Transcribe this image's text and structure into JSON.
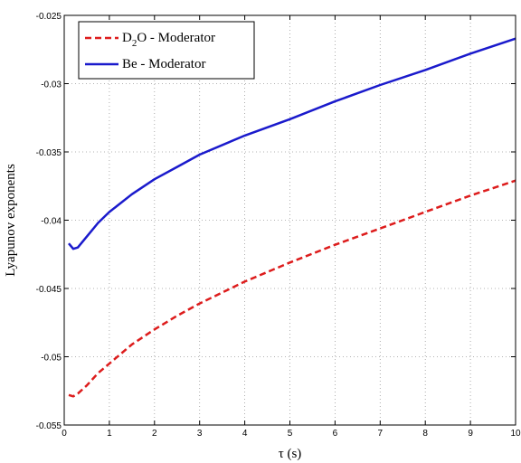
{
  "chart_data": {
    "type": "line",
    "title": "",
    "xlabel": "τ (s)",
    "ylabel": "Lyapunov exponents",
    "xlim": [
      0,
      10
    ],
    "ylim": [
      -0.055,
      -0.025
    ],
    "xticks": [
      "0",
      "1",
      "2",
      "3",
      "4",
      "5",
      "6",
      "7",
      "8",
      "9",
      "10"
    ],
    "yticks": [
      "-0.055",
      "-0.05",
      "-0.045",
      "-0.04",
      "-0.035",
      "-0.03",
      "-0.025"
    ],
    "grid": true,
    "legend_position": "top-left",
    "series": [
      {
        "name": "D2O - Moderator",
        "legend_main": "D",
        "legend_sub": "2",
        "legend_rest": "O - Moderator",
        "color": "#dd1c1c",
        "style": "dashed",
        "x": [
          0.1,
          0.2,
          0.3,
          0.5,
          0.75,
          1,
          1.5,
          2,
          2.5,
          3,
          4,
          5,
          6,
          7,
          8,
          9,
          10
        ],
        "y": [
          -0.0528,
          -0.0529,
          -0.0527,
          -0.0521,
          -0.0512,
          -0.0505,
          -0.0491,
          -0.048,
          -0.047,
          -0.0461,
          -0.0445,
          -0.0431,
          -0.0418,
          -0.0406,
          -0.0394,
          -0.0382,
          -0.0371
        ]
      },
      {
        "name": "Be - Moderator",
        "legend_main": "Be - Moderator",
        "legend_sub": "",
        "legend_rest": "",
        "color": "#1a1acc",
        "style": "solid",
        "x": [
          0.1,
          0.2,
          0.3,
          0.5,
          0.75,
          1,
          1.5,
          2,
          2.5,
          3,
          4,
          5,
          6,
          7,
          8,
          9,
          10
        ],
        "y": [
          -0.0417,
          -0.0421,
          -0.042,
          -0.0412,
          -0.0402,
          -0.0394,
          -0.0381,
          -0.037,
          -0.0361,
          -0.0352,
          -0.0338,
          -0.0326,
          -0.0313,
          -0.0301,
          -0.029,
          -0.0278,
          -0.0267
        ]
      }
    ]
  }
}
